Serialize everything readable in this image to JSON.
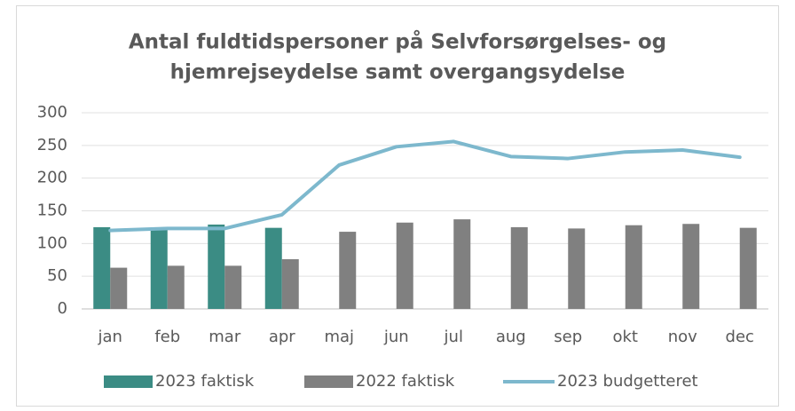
{
  "chart_data": {
    "type": "bar",
    "title": [
      "Antal fuldtidspersoner på Selvforsørgelses- og",
      "hjemrejseydelse samt overgangsydelse"
    ],
    "categories": [
      "jan",
      "feb",
      "mar",
      "apr",
      "maj",
      "jun",
      "jul",
      "aug",
      "sep",
      "okt",
      "nov",
      "dec"
    ],
    "series": [
      {
        "name": "2023 faktisk",
        "type": "bar",
        "color": "#3b8c84",
        "values": [
          125,
          122,
          129,
          124,
          null,
          null,
          null,
          null,
          null,
          null,
          null,
          null
        ]
      },
      {
        "name": "2022 faktisk",
        "type": "bar",
        "color": "#808080",
        "values": [
          63,
          66,
          66,
          76,
          118,
          132,
          137,
          125,
          123,
          128,
          130,
          124
        ]
      },
      {
        "name": "2023 budgetteret",
        "type": "line",
        "color": "#7db8cd",
        "values": [
          120,
          123,
          123,
          144,
          220,
          248,
          256,
          233,
          230,
          240,
          243,
          232
        ]
      }
    ],
    "ylim": [
      0,
      300
    ],
    "yticks": [
      0,
      50,
      100,
      150,
      200,
      250,
      300
    ],
    "grid": true,
    "legend": "bottom"
  }
}
